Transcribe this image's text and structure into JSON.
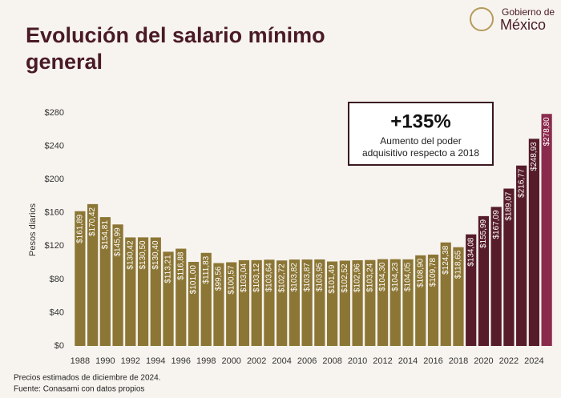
{
  "chart_data": {
    "type": "bar",
    "title": "Evolución del salario mínimo general",
    "y_label": "Pesos diarios",
    "categories": [
      "1988",
      null,
      "1990",
      null,
      "1992",
      null,
      "1994",
      null,
      "1996",
      null,
      "1998",
      null,
      "2000",
      null,
      "2002",
      null,
      "2004",
      null,
      "2006",
      null,
      "2008",
      null,
      "2010",
      null,
      "2012",
      null,
      "2014",
      null,
      "2016",
      null,
      "2018",
      null,
      "2020",
      null,
      "2022",
      null,
      "2024",
      null
    ],
    "values": [
      161.89,
      170.42,
      154.81,
      145.99,
      130.42,
      130.5,
      130.4,
      113.21,
      116.88,
      101.0,
      111.83,
      99.56,
      100.57,
      103.04,
      103.12,
      103.64,
      102.72,
      103.82,
      103.87,
      103.95,
      101.49,
      102.52,
      102.96,
      103.24,
      104.3,
      104.23,
      104.05,
      108.9,
      109.78,
      124.38,
      118.65,
      134.08,
      155.99,
      167.09,
      189.07,
      216.77,
      248.93,
      278.8
    ],
    "value_labels": [
      "$161,89",
      "$170,42",
      "$154,81",
      "$145,99",
      "$130,42",
      "$130,50",
      "$130,40",
      "$113,21",
      "$116,88",
      "$101,00",
      "$111,83",
      "$99,56",
      "$100,57",
      "$103,04",
      "$103,12",
      "$103,64",
      "$102,72",
      "$103,82",
      "$103,87",
      "$103,95",
      "$101,49",
      "$102,52",
      "$102,96",
      "$103,24",
      "$104,30",
      "$104,23",
      "$104,05",
      "$108,90",
      "$109,78",
      "$124,38",
      "$118,65",
      "$134,08",
      "$155,99",
      "$167,09",
      "$189,07",
      "$216,77",
      "$248,93",
      "$278,80"
    ],
    "colors": [
      "#8c7635",
      "#8c7635",
      "#8c7635",
      "#8c7635",
      "#8c7635",
      "#8c7635",
      "#8c7635",
      "#8c7635",
      "#8c7635",
      "#8c7635",
      "#8c7635",
      "#8c7635",
      "#8c7635",
      "#8c7635",
      "#8c7635",
      "#8c7635",
      "#8c7635",
      "#8c7635",
      "#8c7635",
      "#8c7635",
      "#8c7635",
      "#8c7635",
      "#8c7635",
      "#8c7635",
      "#8c7635",
      "#8c7635",
      "#8c7635",
      "#8c7635",
      "#8c7635",
      "#8c7635",
      "#8c7635",
      "#561c2a",
      "#561c2a",
      "#561c2a",
      "#561c2a",
      "#561c2a",
      "#561c2a",
      "#8a2a4d"
    ],
    "ylim": [
      0,
      280
    ],
    "yticks": [
      {
        "value": 0,
        "label": "$0"
      },
      {
        "value": 40,
        "label": "$40"
      },
      {
        "value": 80,
        "label": "$80"
      },
      {
        "value": 120,
        "label": "$120"
      },
      {
        "value": 160,
        "label": "$160"
      },
      {
        "value": 200,
        "label": "$200"
      },
      {
        "value": 240,
        "label": "$240"
      },
      {
        "value": 280,
        "label": "$280"
      }
    ],
    "grid": false,
    "annotation": {
      "headline": "+135%",
      "text_lines": [
        "Aumento del poder",
        "adquisitivo respecto a 2018"
      ]
    },
    "notes": [
      "Precios estimados de diciembre de 2024.",
      "Fuente: Conasami con datos propios"
    ],
    "logo": {
      "line1": "Gobierno de",
      "line2": "México"
    }
  }
}
